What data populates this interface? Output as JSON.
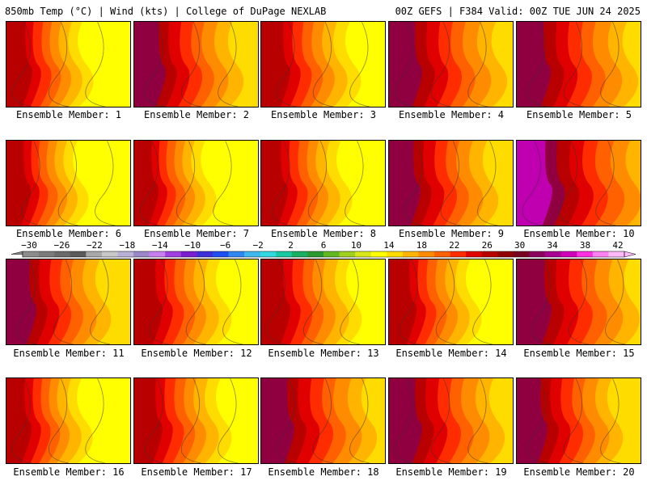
{
  "header": {
    "left": "850mb Temp (°C) | Wind (kts) | College of DuPage NEXLAB",
    "right": "00Z GEFS | F384 Valid: 00Z TUE JUN 24 2025"
  },
  "members": [
    {
      "label": "Ensemble Member: 1",
      "warm": 0.3
    },
    {
      "label": "Ensemble Member: 2",
      "warm": 0.62
    },
    {
      "label": "Ensemble Member: 3",
      "warm": 0.48
    },
    {
      "label": "Ensemble Member: 4",
      "warm": 0.75
    },
    {
      "label": "Ensemble Member: 5",
      "warm": 0.8
    },
    {
      "label": "Ensemble Member: 6",
      "warm": 0.22
    },
    {
      "label": "Ensemble Member: 7",
      "warm": 0.22
    },
    {
      "label": "Ensemble Member: 8",
      "warm": 0.35
    },
    {
      "label": "Ensemble Member: 9",
      "warm": 0.62
    },
    {
      "label": "Ensemble Member: 10",
      "warm": 0.85
    },
    {
      "label": "Ensemble Member: 11",
      "warm": 0.55
    },
    {
      "label": "Ensemble Member: 12",
      "warm": 0.45
    },
    {
      "label": "Ensemble Member: 13",
      "warm": 0.5
    },
    {
      "label": "Ensemble Member: 14",
      "warm": 0.38
    },
    {
      "label": "Ensemble Member: 15",
      "warm": 0.82
    },
    {
      "label": "Ensemble Member: 16",
      "warm": 0.28
    },
    {
      "label": "Ensemble Member: 17",
      "warm": 0.45
    },
    {
      "label": "Ensemble Member: 18",
      "warm": 0.72
    },
    {
      "label": "Ensemble Member: 19",
      "warm": 0.72
    },
    {
      "label": "Ensemble Member: 20",
      "warm": 0.58
    }
  ],
  "colorbar": {
    "ticks": [
      "−30",
      "−26",
      "−22",
      "−18",
      "−14",
      "−10",
      "−6",
      "−2",
      "2",
      "6",
      "10",
      "14",
      "18",
      "22",
      "26",
      "30",
      "34",
      "38",
      "42"
    ],
    "colors": [
      "#8c8c8c",
      "#7b7b7b",
      "#6a6a6a",
      "#5a5a5a",
      "#a8a8a8",
      "#c8c8c8",
      "#b9b0d6",
      "#9a86c9",
      "#c77ff0",
      "#a040e0",
      "#7a1fd0",
      "#3c2fd8",
      "#1f4ff0",
      "#2f86f0",
      "#3fb8f0",
      "#30d8e0",
      "#18c8a0",
      "#18b060",
      "#2c9a30",
      "#62b820",
      "#9fd020",
      "#d8e818",
      "#ffff00",
      "#ffdc00",
      "#ffb400",
      "#ff8c00",
      "#ff6000",
      "#ff2c00",
      "#e00000",
      "#b80000",
      "#900000",
      "#780020",
      "#8c0060",
      "#a80090",
      "#d000b8",
      "#ff30e0",
      "#ff80f0",
      "#ffb8f8"
    ]
  }
}
